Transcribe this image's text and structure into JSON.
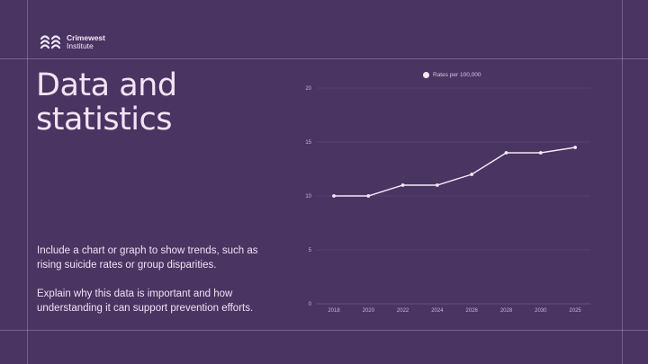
{
  "brand": {
    "name_line1": "Crimewest",
    "name_line2": "Institute",
    "logo_icon": "waves-logo-icon"
  },
  "slide": {
    "title_line1": "Data and",
    "title_line2": "statistics",
    "paragraphs": [
      "Include a chart or graph to show trends, such as rising suicide rates or group disparities.",
      "Explain why this data is important and how understanding it can support prevention efforts."
    ]
  },
  "colors": {
    "background": "#4a3462",
    "line": "#f4eaf7",
    "text": "#f3e3f4",
    "grid": "#5d4677"
  },
  "chart_data": {
    "type": "line",
    "title": "",
    "xlabel": "",
    "ylabel": "",
    "categories": [
      "2018",
      "2020",
      "2022",
      "2024",
      "2026",
      "2028",
      "2030",
      "2025"
    ],
    "series": [
      {
        "name": "Rates per 100,000",
        "values": [
          10,
          10,
          11,
          11,
          12,
          14,
          14,
          14.5
        ]
      }
    ],
    "yticks": [
      "0",
      "5",
      "10",
      "15",
      "20"
    ],
    "ylim": [
      0,
      20
    ],
    "grid": true,
    "legend_position": "top"
  }
}
